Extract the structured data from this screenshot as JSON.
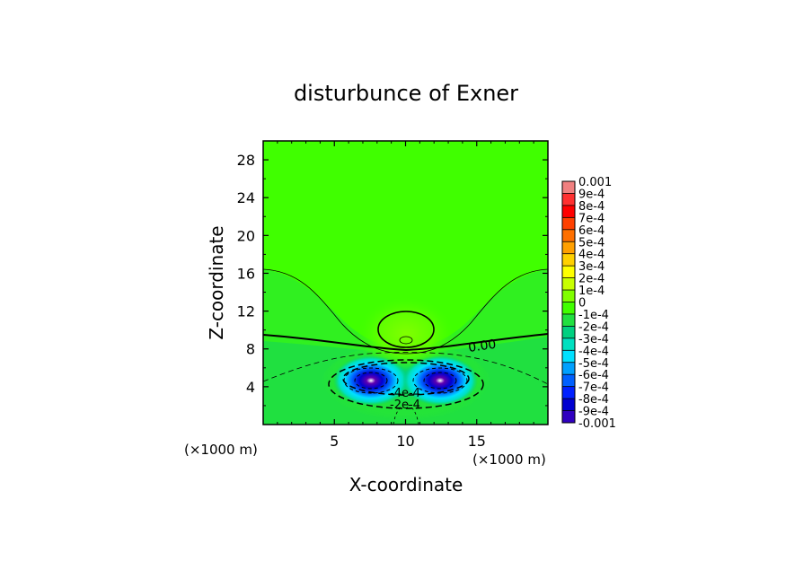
{
  "chart_data": {
    "type": "heatmap",
    "title": "disturbunce of Exner",
    "xlabel": "X-coordinate",
    "ylabel": "Z-coordinate",
    "x_unit_label_left": "(×1000 m)",
    "x_unit_label_right": "(×1000 m)",
    "xlim": [
      0,
      20
    ],
    "ylim": [
      0,
      30
    ],
    "xticks": [
      "5",
      "10",
      "15"
    ],
    "xtick_values": [
      5,
      10,
      15
    ],
    "yticks": [
      "4",
      "8",
      "12",
      "16",
      "20",
      "24",
      "28"
    ],
    "ytick_values": [
      4,
      8,
      12,
      16,
      20,
      24,
      28
    ],
    "contour_labels": [
      "0.00",
      "-4e-4",
      "-2e-4"
    ],
    "colorbar": {
      "labels": [
        "0.001",
        "9e-4",
        "8e-4",
        "7e-4",
        "6e-4",
        "5e-4",
        "4e-4",
        "3e-4",
        "2e-4",
        "1e-4",
        "0",
        "-1e-4",
        "-2e-4",
        "-3e-4",
        "-4e-4",
        "-5e-4",
        "-6e-4",
        "-7e-4",
        "-8e-4",
        "-9e-4",
        "-0.001"
      ],
      "colors": [
        "#f08080",
        "#ff3030",
        "#ff0000",
        "#ff4000",
        "#ff7000",
        "#ffa000",
        "#ffd000",
        "#ffff00",
        "#c8ff00",
        "#80ff00",
        "#40ff00",
        "#20e040",
        "#00d080",
        "#00e0c0",
        "#00e0ff",
        "#00a0ff",
        "#0060ff",
        "#0020ff",
        "#0000d0",
        "#3000c0",
        "#6000b0"
      ],
      "vmin": -0.001,
      "vmax": 0.001
    }
  }
}
